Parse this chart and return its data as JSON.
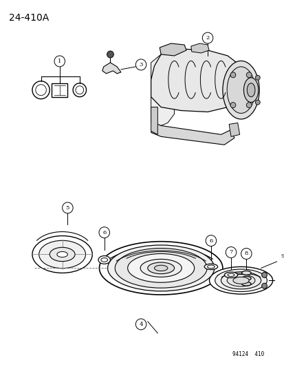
{
  "title": "24-410A",
  "footer": "94124  410",
  "bg_color": "#ffffff",
  "fg_color": "#000000",
  "figure_width": 4.14,
  "figure_height": 5.33,
  "dpi": 100
}
